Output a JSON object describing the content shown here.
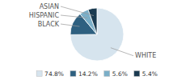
{
  "chart_data": {
    "type": "pie",
    "categories": [
      "WHITE",
      "BLACK",
      "HISPANIC",
      "ASIAN"
    ],
    "values": [
      74.8,
      14.2,
      5.6,
      5.4
    ],
    "value_labels": [
      "74.8%",
      "14.2%",
      "5.6%",
      "5.4%"
    ],
    "colors": [
      "#d6e4ee",
      "#2e6080",
      "#7bafc8",
      "#1a3a50"
    ],
    "legend": "bottom"
  }
}
